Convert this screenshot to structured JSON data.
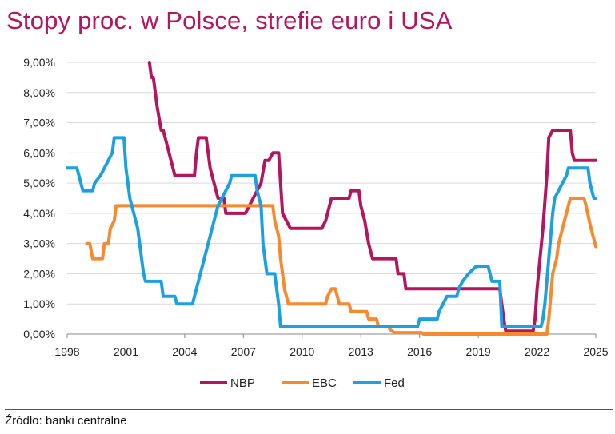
{
  "title": "Stopy proc. w Polsce, strefie euro i USA",
  "source": "Źródło: banki centralne",
  "chart_data": {
    "type": "line",
    "title": "Stopy proc. w Polsce, strefie euro i USA",
    "xlabel": "",
    "ylabel": "",
    "xlim": [
      1998,
      2025
    ],
    "ylim": [
      0,
      9
    ],
    "x_ticks": [
      "1998",
      "2001",
      "2004",
      "2007",
      "2010",
      "2013",
      "2016",
      "2019",
      "2022",
      "2025"
    ],
    "y_ticks": [
      "0,00%",
      "1,00%",
      "2,00%",
      "3,00%",
      "4,00%",
      "5,00%",
      "6,00%",
      "7,00%",
      "8,00%",
      "9,00%"
    ],
    "grid": "horizontal",
    "legend_position": "bottom",
    "series": [
      {
        "name": "NBP",
        "color": "#b5145f",
        "points": [
          [
            2002.2,
            9.0
          ],
          [
            2002.3,
            8.5
          ],
          [
            2002.4,
            8.5
          ],
          [
            2002.6,
            7.5
          ],
          [
            2002.8,
            6.75
          ],
          [
            2002.9,
            6.75
          ],
          [
            2003.1,
            6.25
          ],
          [
            2003.4,
            5.5
          ],
          [
            2003.5,
            5.25
          ],
          [
            2004.4,
            5.25
          ],
          [
            2004.5,
            5.25
          ],
          [
            2004.6,
            6.0
          ],
          [
            2004.7,
            6.5
          ],
          [
            2005.1,
            6.5
          ],
          [
            2005.3,
            5.5
          ],
          [
            2005.5,
            5.0
          ],
          [
            2005.7,
            4.5
          ],
          [
            2006.0,
            4.5
          ],
          [
            2006.1,
            4.0
          ],
          [
            2007.1,
            4.0
          ],
          [
            2007.3,
            4.25
          ],
          [
            2007.5,
            4.5
          ],
          [
            2007.7,
            4.75
          ],
          [
            2007.9,
            5.0
          ],
          [
            2008.1,
            5.75
          ],
          [
            2008.3,
            5.75
          ],
          [
            2008.5,
            6.0
          ],
          [
            2008.8,
            6.0
          ],
          [
            2008.9,
            5.0
          ],
          [
            2009.0,
            4.0
          ],
          [
            2009.2,
            3.75
          ],
          [
            2009.4,
            3.5
          ],
          [
            2011.0,
            3.5
          ],
          [
            2011.2,
            3.75
          ],
          [
            2011.3,
            4.0
          ],
          [
            2011.5,
            4.5
          ],
          [
            2012.4,
            4.5
          ],
          [
            2012.5,
            4.75
          ],
          [
            2012.9,
            4.75
          ],
          [
            2013.0,
            4.25
          ],
          [
            2013.2,
            3.75
          ],
          [
            2013.4,
            3.0
          ],
          [
            2013.6,
            2.5
          ],
          [
            2014.8,
            2.5
          ],
          [
            2014.9,
            2.0
          ],
          [
            2015.2,
            2.0
          ],
          [
            2015.3,
            1.5
          ],
          [
            2020.1,
            1.5
          ],
          [
            2020.3,
            0.5
          ],
          [
            2020.4,
            0.1
          ],
          [
            2021.8,
            0.1
          ],
          [
            2021.9,
            0.5
          ],
          [
            2022.0,
            1.5
          ],
          [
            2022.3,
            3.5
          ],
          [
            2022.5,
            5.25
          ],
          [
            2022.6,
            6.5
          ],
          [
            2022.8,
            6.75
          ],
          [
            2023.7,
            6.75
          ],
          [
            2023.8,
            6.0
          ],
          [
            2023.9,
            5.75
          ],
          [
            2025.0,
            5.75
          ]
        ]
      },
      {
        "name": "EBC",
        "color": "#f7892e",
        "points": [
          [
            1999.0,
            3.0
          ],
          [
            1999.15,
            3.0
          ],
          [
            1999.3,
            2.5
          ],
          [
            1999.8,
            2.5
          ],
          [
            1999.9,
            3.0
          ],
          [
            2000.1,
            3.0
          ],
          [
            2000.2,
            3.5
          ],
          [
            2000.4,
            3.75
          ],
          [
            2000.5,
            4.25
          ],
          [
            2008.5,
            4.25
          ],
          [
            2008.6,
            3.75
          ],
          [
            2008.8,
            3.25
          ],
          [
            2008.9,
            2.5
          ],
          [
            2009.0,
            2.0
          ],
          [
            2009.1,
            1.5
          ],
          [
            2009.3,
            1.0
          ],
          [
            2011.2,
            1.0
          ],
          [
            2011.3,
            1.25
          ],
          [
            2011.5,
            1.5
          ],
          [
            2011.7,
            1.5
          ],
          [
            2011.8,
            1.25
          ],
          [
            2011.9,
            1.0
          ],
          [
            2012.4,
            1.0
          ],
          [
            2012.5,
            0.75
          ],
          [
            2013.3,
            0.75
          ],
          [
            2013.4,
            0.5
          ],
          [
            2013.8,
            0.5
          ],
          [
            2013.9,
            0.25
          ],
          [
            2014.4,
            0.25
          ],
          [
            2014.5,
            0.15
          ],
          [
            2014.7,
            0.05
          ],
          [
            2016.1,
            0.05
          ],
          [
            2016.2,
            0.0
          ],
          [
            2022.5,
            0.0
          ],
          [
            2022.6,
            0.5
          ],
          [
            2022.7,
            1.25
          ],
          [
            2022.8,
            2.0
          ],
          [
            2023.0,
            2.5
          ],
          [
            2023.1,
            3.0
          ],
          [
            2023.3,
            3.5
          ],
          [
            2023.4,
            3.75
          ],
          [
            2023.6,
            4.25
          ],
          [
            2023.7,
            4.5
          ],
          [
            2024.4,
            4.5
          ],
          [
            2024.5,
            4.25
          ],
          [
            2024.7,
            3.65
          ],
          [
            2024.8,
            3.4
          ],
          [
            2024.9,
            3.15
          ],
          [
            2025.0,
            2.9
          ]
        ]
      },
      {
        "name": "Fed",
        "color": "#1ba1e2",
        "points": [
          [
            1998.0,
            5.5
          ],
          [
            1998.5,
            5.5
          ],
          [
            1998.7,
            5.0
          ],
          [
            1998.8,
            4.75
          ],
          [
            1999.3,
            4.75
          ],
          [
            1999.4,
            5.0
          ],
          [
            1999.7,
            5.25
          ],
          [
            1999.9,
            5.5
          ],
          [
            2000.1,
            5.75
          ],
          [
            2000.3,
            6.0
          ],
          [
            2000.4,
            6.5
          ],
          [
            2000.9,
            6.5
          ],
          [
            2001.0,
            5.5
          ],
          [
            2001.2,
            4.5
          ],
          [
            2001.4,
            4.0
          ],
          [
            2001.5,
            3.75
          ],
          [
            2001.6,
            3.5
          ],
          [
            2001.7,
            3.0
          ],
          [
            2001.8,
            2.5
          ],
          [
            2001.9,
            2.0
          ],
          [
            2002.0,
            1.75
          ],
          [
            2002.8,
            1.75
          ],
          [
            2002.9,
            1.25
          ],
          [
            2003.5,
            1.25
          ],
          [
            2003.6,
            1.0
          ],
          [
            2004.4,
            1.0
          ],
          [
            2004.5,
            1.25
          ],
          [
            2004.7,
            1.75
          ],
          [
            2004.9,
            2.25
          ],
          [
            2005.1,
            2.75
          ],
          [
            2005.3,
            3.25
          ],
          [
            2005.5,
            3.75
          ],
          [
            2005.7,
            4.25
          ],
          [
            2005.9,
            4.5
          ],
          [
            2006.1,
            4.75
          ],
          [
            2006.3,
            5.0
          ],
          [
            2006.4,
            5.25
          ],
          [
            2007.6,
            5.25
          ],
          [
            2007.7,
            4.75
          ],
          [
            2007.9,
            4.25
          ],
          [
            2008.0,
            3.0
          ],
          [
            2008.2,
            2.0
          ],
          [
            2008.6,
            2.0
          ],
          [
            2008.8,
            1.0
          ],
          [
            2008.9,
            0.25
          ],
          [
            2015.9,
            0.25
          ],
          [
            2016.0,
            0.5
          ],
          [
            2016.9,
            0.5
          ],
          [
            2017.0,
            0.75
          ],
          [
            2017.2,
            1.0
          ],
          [
            2017.4,
            1.25
          ],
          [
            2017.9,
            1.25
          ],
          [
            2018.0,
            1.5
          ],
          [
            2018.2,
            1.75
          ],
          [
            2018.5,
            2.0
          ],
          [
            2018.9,
            2.25
          ],
          [
            2019.5,
            2.25
          ],
          [
            2019.6,
            2.0
          ],
          [
            2019.7,
            1.75
          ],
          [
            2020.1,
            1.75
          ],
          [
            2020.2,
            0.25
          ],
          [
            2022.2,
            0.25
          ],
          [
            2022.3,
            0.5
          ],
          [
            2022.4,
            1.0
          ],
          [
            2022.5,
            1.75
          ],
          [
            2022.6,
            2.5
          ],
          [
            2022.7,
            3.25
          ],
          [
            2022.8,
            4.0
          ],
          [
            2022.9,
            4.5
          ],
          [
            2023.1,
            4.75
          ],
          [
            2023.3,
            5.0
          ],
          [
            2023.5,
            5.25
          ],
          [
            2023.6,
            5.5
          ],
          [
            2024.6,
            5.5
          ],
          [
            2024.7,
            5.0
          ],
          [
            2024.8,
            4.75
          ],
          [
            2024.9,
            4.5
          ],
          [
            2025.0,
            4.5
          ]
        ]
      }
    ]
  }
}
